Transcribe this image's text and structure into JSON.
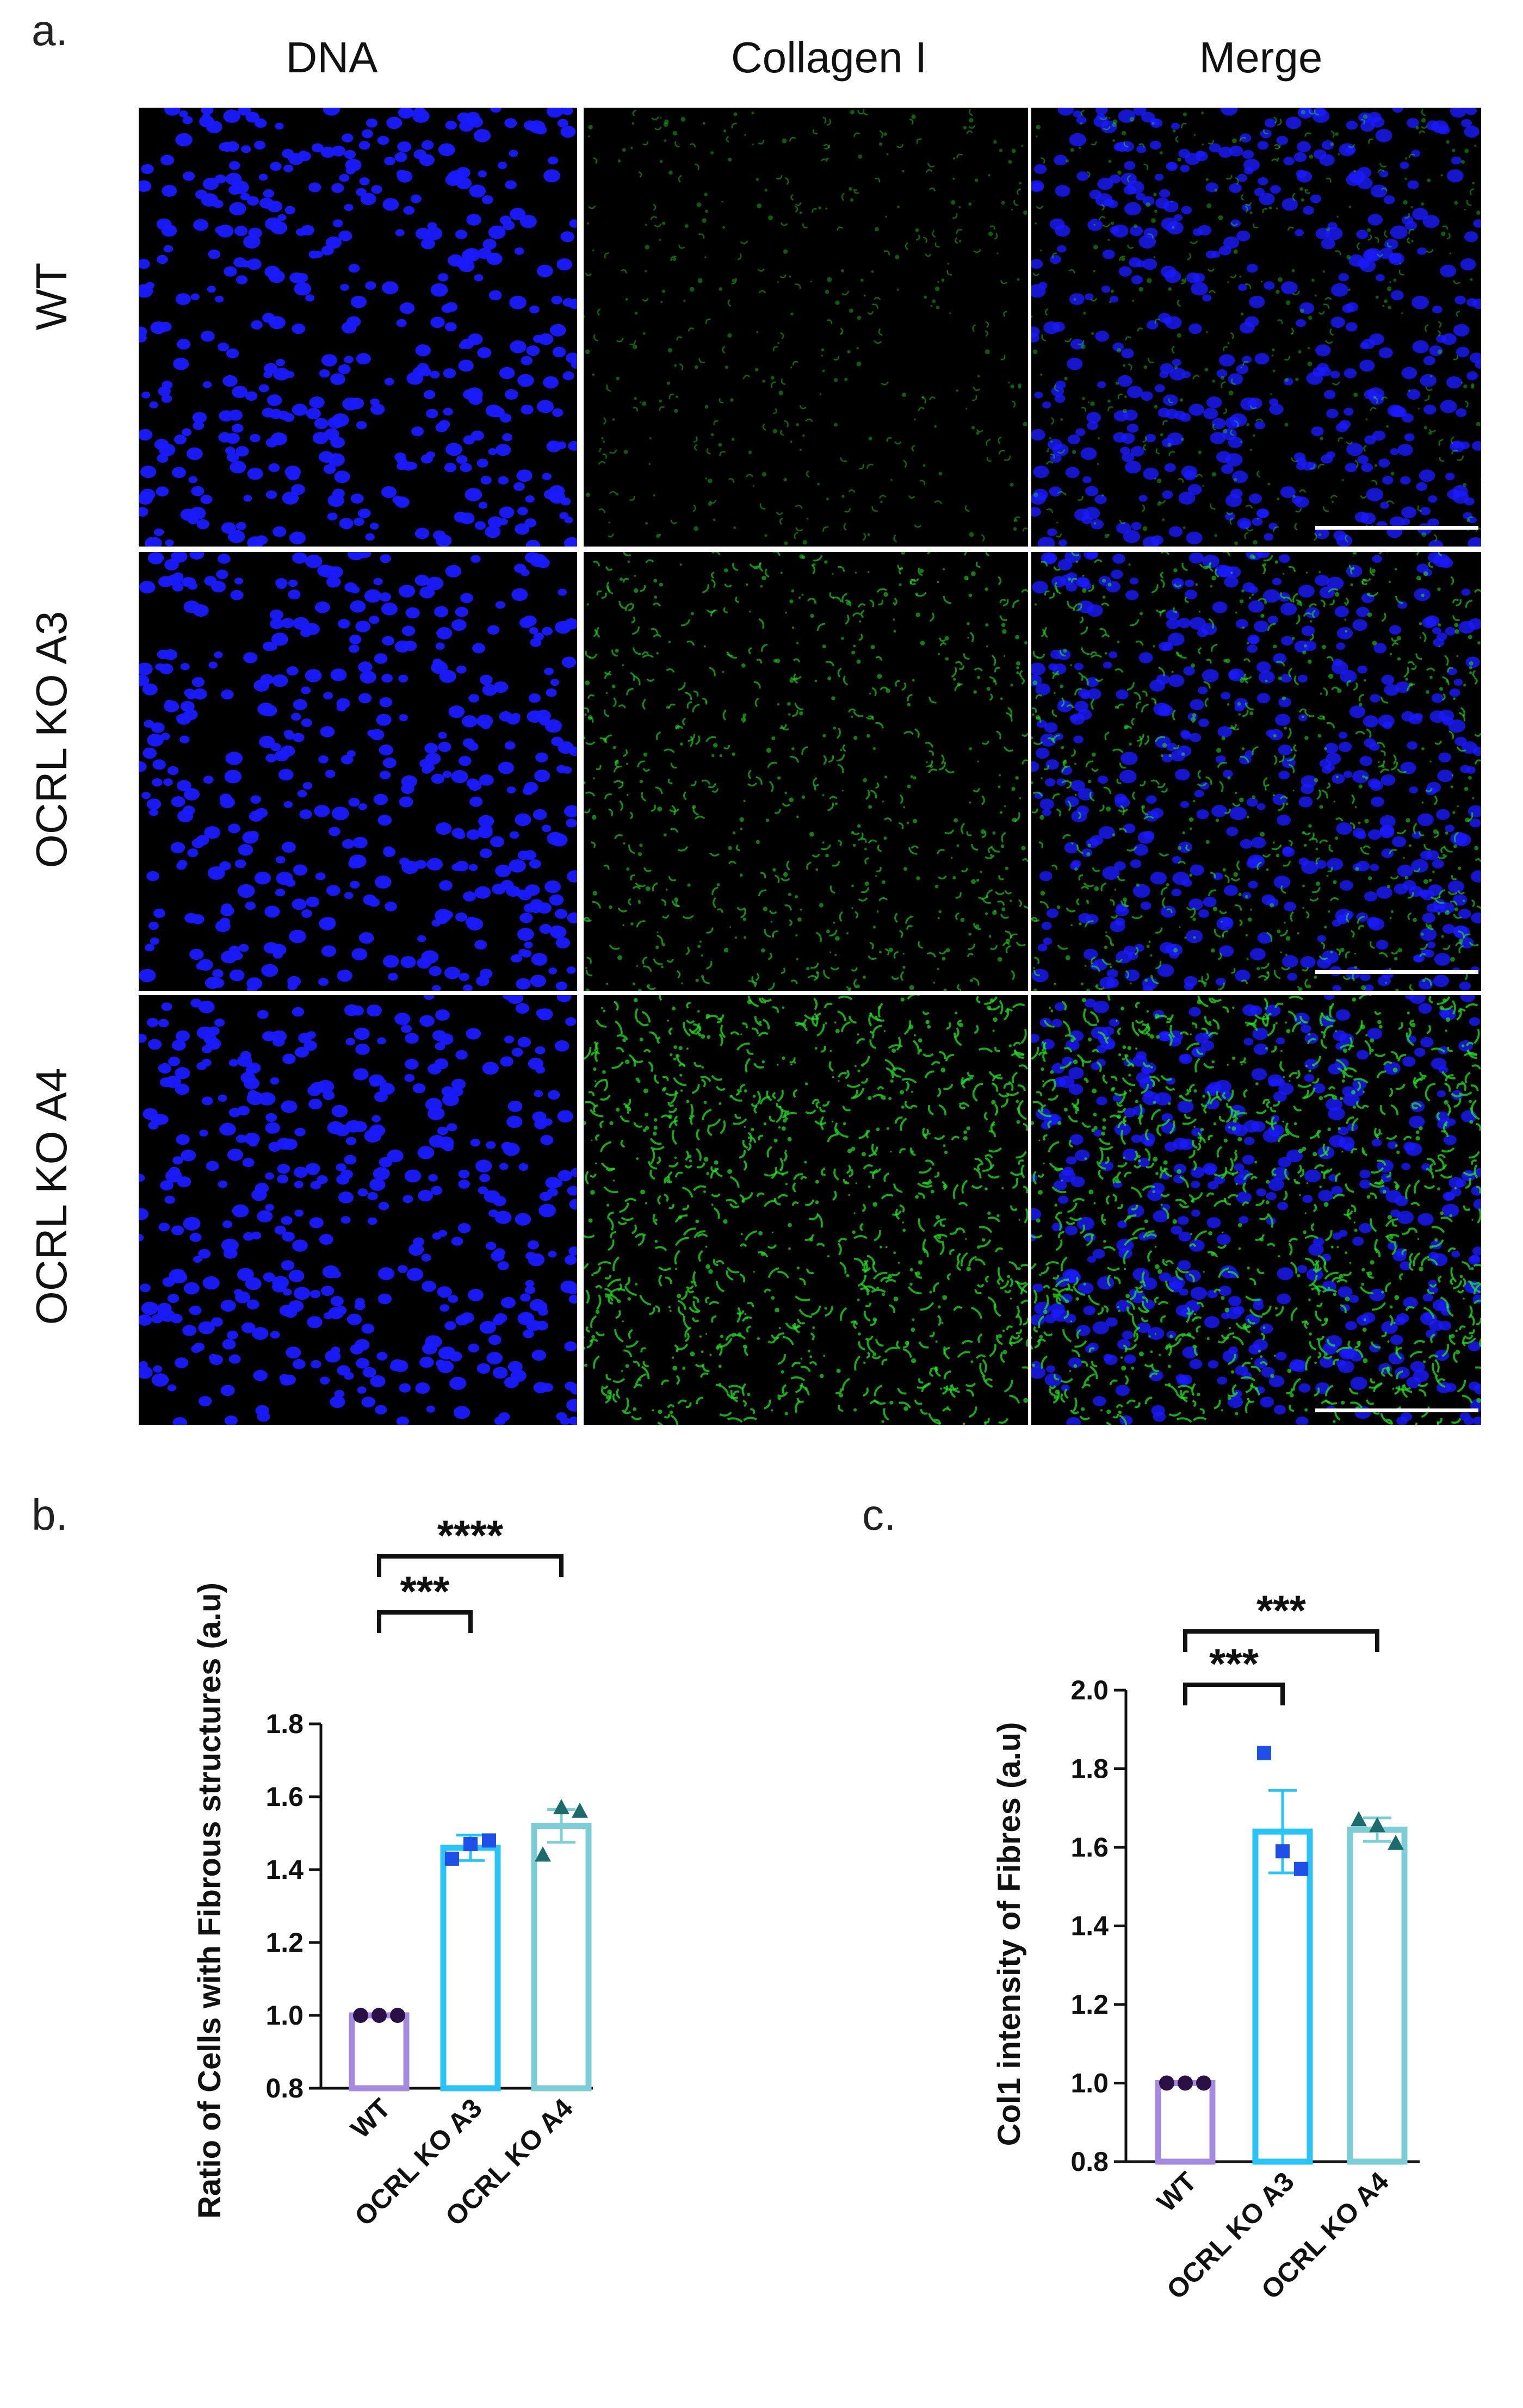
{
  "panel_a": {
    "letter": "a.",
    "columns": [
      "DNA",
      "Collagen I",
      "Merge"
    ],
    "rows": [
      "WT",
      "OCRL KO A3",
      "OCRL KO A4"
    ],
    "colors": {
      "dna": "#1a1aff",
      "collagen": "#22dd22",
      "background": "#000000",
      "scalebar": "#ffffff"
    },
    "collagen_density_level": [
      0.25,
      0.55,
      0.85
    ]
  },
  "chart_data": [
    {
      "panel": "b.",
      "type": "bar",
      "categories": [
        "WT",
        "OCRL KO A3",
        "OCRL KO A4"
      ],
      "values": [
        1.0,
        1.46,
        1.52
      ],
      "error": [
        0.0,
        0.035,
        0.045
      ],
      "points": [
        [
          1.0,
          1.0,
          1.0
        ],
        [
          1.43,
          1.47,
          1.48
        ],
        [
          1.44,
          1.57,
          1.56
        ]
      ],
      "marker_shapes": [
        "circle",
        "square",
        "triangle"
      ],
      "bar_colors": [
        "#a58be0",
        "#29c3f5",
        "#7dcdd6"
      ],
      "point_colors": [
        "#2b1045",
        "#1f4fe6",
        "#1e6b6e"
      ],
      "ylabel": "Ratio of Cells with Fibrous structures (a.u)",
      "ylim": [
        0.8,
        1.8
      ],
      "yticks": [
        "0.8",
        "1.0",
        "1.2",
        "1.4",
        "1.6",
        "1.8"
      ],
      "significance": [
        {
          "from": 0,
          "to": 1,
          "label": "***"
        },
        {
          "from": 0,
          "to": 2,
          "label": "****"
        }
      ]
    },
    {
      "panel": "c.",
      "type": "bar",
      "categories": [
        "WT",
        "OCRL KO A3",
        "OCRL KO A4"
      ],
      "values": [
        1.0,
        1.64,
        1.645
      ],
      "error": [
        0.0,
        0.105,
        0.03
      ],
      "points": [
        [
          1.0,
          1.0,
          1.0
        ],
        [
          1.84,
          1.59,
          1.545
        ],
        [
          1.67,
          1.655,
          1.61
        ]
      ],
      "marker_shapes": [
        "circle",
        "square",
        "triangle"
      ],
      "bar_colors": [
        "#a58be0",
        "#29c3f5",
        "#7dcdd6"
      ],
      "point_colors": [
        "#2b1045",
        "#1f4fe6",
        "#1e6b6e"
      ],
      "ylabel": "Col1 intensity of Fibres (a.u)",
      "ylim": [
        0.8,
        2.0
      ],
      "yticks": [
        "0.8",
        "1.0",
        "1.2",
        "1.4",
        "1.6",
        "1.8",
        "2.0"
      ],
      "significance": [
        {
          "from": 0,
          "to": 1,
          "label": "***"
        },
        {
          "from": 0,
          "to": 2,
          "label": "***"
        }
      ]
    }
  ]
}
